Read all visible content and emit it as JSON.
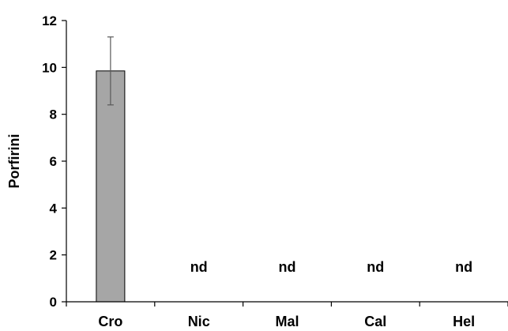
{
  "chart_data": {
    "type": "bar",
    "title": "",
    "xlabel": "",
    "ylabel": "Porfirini",
    "categories": [
      "Cro",
      "Nic",
      "Mal",
      "Cal",
      "Hel"
    ],
    "values": [
      9.85,
      null,
      null,
      null,
      null
    ],
    "error": [
      1.45,
      null,
      null,
      null,
      null
    ],
    "bar_labels": [
      "",
      "nd",
      "nd",
      "nd",
      "nd"
    ],
    "ylim": [
      0,
      12
    ],
    "yticks": [
      0,
      2,
      4,
      6,
      8,
      10,
      12
    ],
    "grid": false,
    "legend": "none",
    "colors": {
      "bar_fill": "#a6a6a6",
      "bar_stroke": "#000000",
      "axis": "#000000",
      "error_bar": "#595959"
    }
  }
}
